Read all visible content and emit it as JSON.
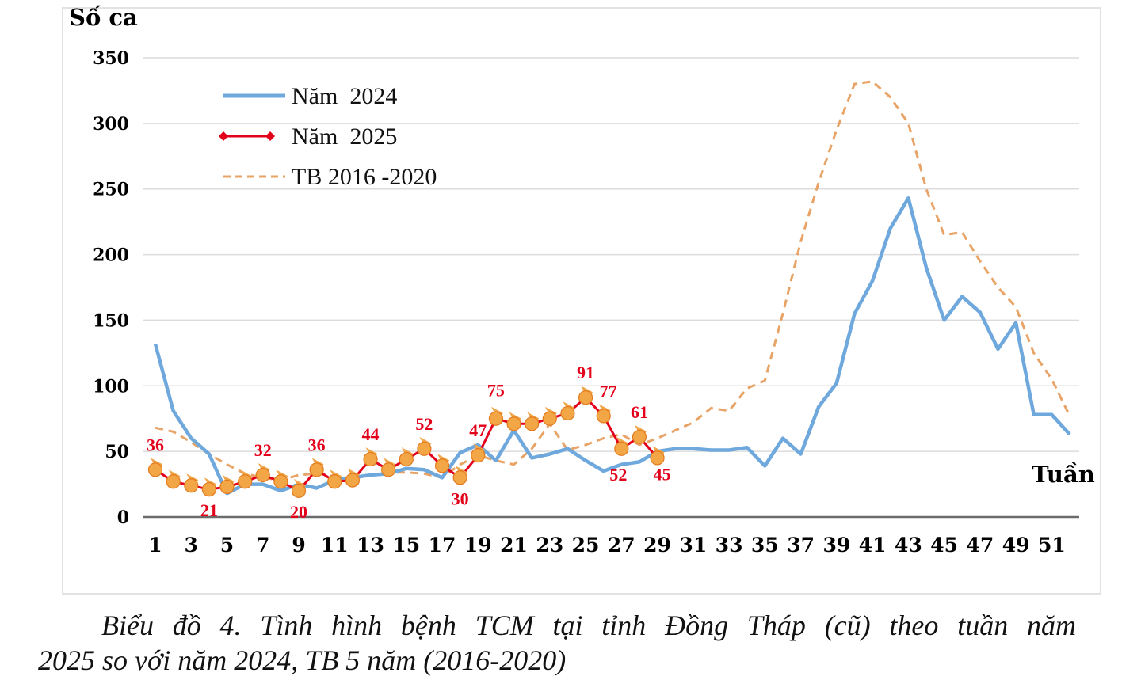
{
  "chart_data": {
    "type": "line",
    "ylabel": "Số ca",
    "xlabel": "Tuần",
    "ylim": [
      0,
      350
    ],
    "yticks": [
      0,
      50,
      100,
      150,
      200,
      250,
      300,
      350
    ],
    "xlim": [
      1,
      52
    ],
    "xticks": [
      1,
      3,
      5,
      7,
      9,
      11,
      13,
      15,
      17,
      19,
      21,
      23,
      25,
      27,
      29,
      31,
      33,
      35,
      37,
      39,
      41,
      43,
      45,
      47,
      49,
      51
    ],
    "grid": true,
    "legend": "top-left",
    "series": [
      {
        "name": "Năm  2024",
        "color": "#6fa8dc",
        "style": "solid",
        "x": [
          1,
          2,
          3,
          4,
          5,
          6,
          7,
          8,
          9,
          10,
          11,
          12,
          13,
          14,
          15,
          16,
          17,
          18,
          19,
          20,
          21,
          22,
          23,
          24,
          25,
          26,
          27,
          28,
          29,
          30,
          31,
          32,
          33,
          34,
          35,
          36,
          37,
          38,
          39,
          40,
          41,
          42,
          43,
          44,
          45,
          46,
          47,
          48,
          49,
          50,
          51,
          52
        ],
        "values": [
          132,
          81,
          60,
          48,
          18,
          25,
          25,
          20,
          25,
          22,
          28,
          30,
          32,
          33,
          37,
          36,
          30,
          49,
          55,
          43,
          66,
          45,
          48,
          52,
          43,
          35,
          40,
          42,
          50,
          52,
          52,
          51,
          51,
          53,
          39,
          60,
          48,
          84,
          102,
          155,
          180,
          220,
          243,
          190,
          150,
          168,
          156,
          128,
          148,
          78,
          78,
          63
        ]
      },
      {
        "name": "Năm  2025",
        "color": "#e3001b",
        "style": "marker",
        "x": [
          1,
          2,
          3,
          4,
          5,
          6,
          7,
          8,
          9,
          10,
          11,
          12,
          13,
          14,
          15,
          16,
          17,
          18,
          19,
          20,
          21,
          22,
          23,
          24,
          25,
          26,
          27,
          28,
          29
        ],
        "values": [
          36,
          27,
          24,
          21,
          23,
          27,
          32,
          27,
          20,
          36,
          27,
          28,
          44,
          36,
          44,
          52,
          39,
          30,
          47,
          75,
          71,
          71,
          75,
          79,
          91,
          77,
          52,
          61,
          45
        ],
        "labels": [
          {
            "x": 1,
            "text": "36"
          },
          {
            "x": 4,
            "text": "21"
          },
          {
            "x": 7,
            "text": "32"
          },
          {
            "x": 9,
            "text": "20"
          },
          {
            "x": 10,
            "text": "36"
          },
          {
            "x": 13,
            "text": "44"
          },
          {
            "x": 16,
            "text": "52"
          },
          {
            "x": 18,
            "text": "30"
          },
          {
            "x": 19,
            "text": "47"
          },
          {
            "x": 20,
            "text": "75"
          },
          {
            "x": 25,
            "text": "91"
          },
          {
            "x": 26,
            "text": "77"
          },
          {
            "x": 27,
            "text": "52"
          },
          {
            "x": 28,
            "text": "61"
          },
          {
            "x": 29,
            "text": "45"
          }
        ]
      },
      {
        "name": "TB 2016 -2020",
        "color": "#e8a366",
        "style": "dashed",
        "x": [
          1,
          2,
          3,
          4,
          5,
          6,
          7,
          8,
          9,
          10,
          11,
          12,
          13,
          14,
          15,
          16,
          17,
          18,
          19,
          20,
          21,
          22,
          23,
          24,
          25,
          26,
          27,
          28,
          29,
          30,
          31,
          32,
          33,
          34,
          35,
          36,
          37,
          38,
          39,
          40,
          41,
          42,
          43,
          44,
          45,
          46,
          47,
          48,
          49,
          50,
          51,
          52
        ],
        "values": [
          68,
          65,
          57,
          48,
          40,
          33,
          30,
          28,
          32,
          33,
          31,
          29,
          32,
          34,
          34,
          33,
          30,
          40,
          47,
          43,
          40,
          52,
          71,
          51,
          55,
          60,
          63,
          55,
          60,
          66,
          72,
          83,
          81,
          98,
          104,
          155,
          210,
          255,
          295,
          330,
          332,
          320,
          300,
          250,
          215,
          217,
          195,
          175,
          160,
          125,
          105,
          77
        ]
      }
    ],
    "caption_line1": "Biểu đồ 4. Tình hình bệnh TCM tại tỉnh Đồng Tháp (cũ) theo tuần năm",
    "caption_line2": "2025 so với năm 2024, TB 5 năm (2016-2020)"
  }
}
